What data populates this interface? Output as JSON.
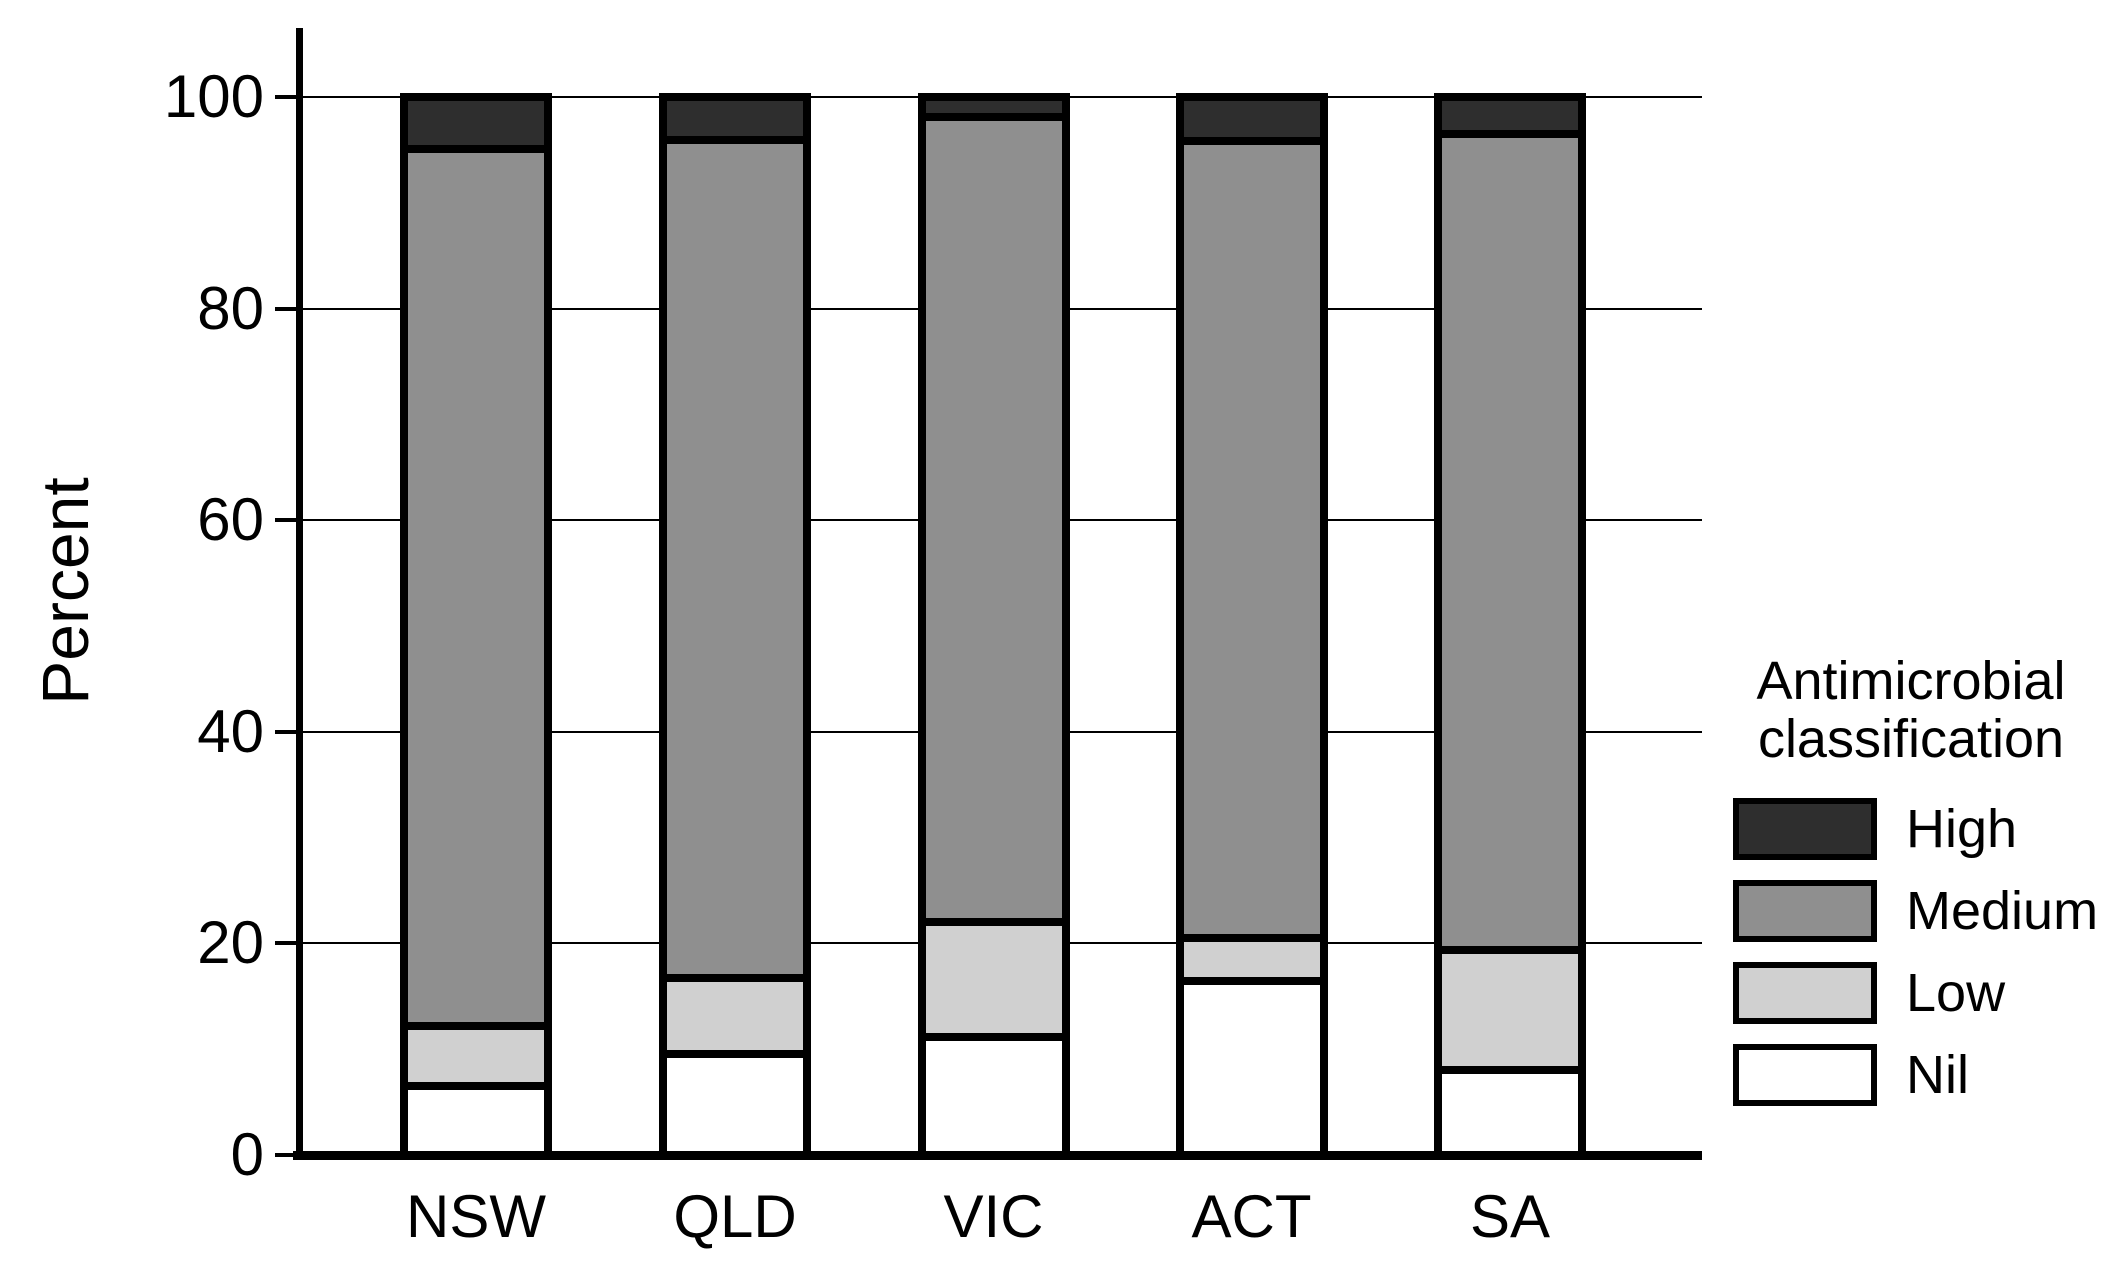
{
  "figure": {
    "ylabel": "Percent",
    "y_ticks": [
      "0",
      "20",
      "40",
      "60",
      "80",
      "100"
    ],
    "categories": [
      "NSW",
      "QLD",
      "VIC",
      "ACT",
      "SA"
    ],
    "legend": {
      "title_line1": "Antimicrobial",
      "title_line2": "classification",
      "items": [
        {
          "id": "high",
          "label": "High",
          "color": "#2e2e2e"
        },
        {
          "id": "medium",
          "label": "Medium",
          "color": "#8f8f8f"
        },
        {
          "id": "low",
          "label": "Low",
          "color": "#d0d0d0"
        },
        {
          "id": "nil",
          "label": "Nil",
          "color": "#ffffff"
        }
      ]
    },
    "colors": {
      "axis": "#000000",
      "grid": "#000000",
      "bar_border": "#000000",
      "background": "#ffffff"
    }
  },
  "chart_data": {
    "type": "bar",
    "stacked": true,
    "title": "",
    "xlabel": "",
    "ylabel": "Percent",
    "ylim": [
      0,
      100
    ],
    "grid": true,
    "legend_position": "right",
    "legend_title": "Antimicrobial classification",
    "categories": [
      "NSW",
      "QLD",
      "VIC",
      "ACT",
      "SA"
    ],
    "series": [
      {
        "name": "Nil",
        "color": "#ffffff",
        "values": [
          6.5,
          9.5,
          11.2,
          16.4,
          8.0
        ]
      },
      {
        "name": "Low",
        "color": "#d0d0d0",
        "values": [
          5.7,
          7.2,
          10.8,
          4.1,
          11.4
        ]
      },
      {
        "name": "Medium",
        "color": "#8f8f8f",
        "values": [
          82.9,
          79.2,
          76.1,
          75.3,
          77.1
        ]
      },
      {
        "name": "High",
        "color": "#2e2e2e",
        "values": [
          4.9,
          4.1,
          1.9,
          4.2,
          3.5
        ]
      }
    ]
  }
}
